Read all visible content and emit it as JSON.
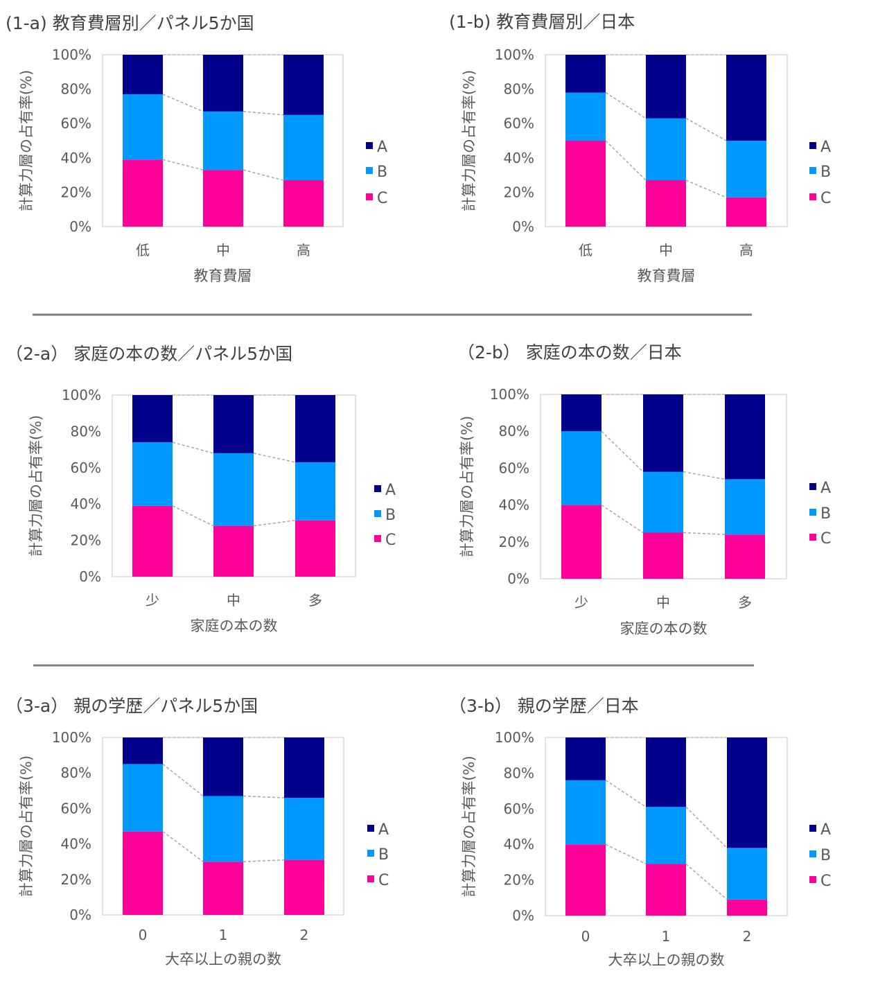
{
  "colors": {
    "A": "#00008b",
    "B": "#0099ff",
    "C": "#ff0099",
    "connector": "#a6a6a6",
    "divider": "#7f7f7f"
  },
  "legend": [
    "A",
    "B",
    "C"
  ],
  "chart_data": [
    {
      "id": "1-a",
      "type": "bar",
      "stacked": true,
      "title": "(1-a) 教育費層別／パネル5か国",
      "xlabel": "教育費層",
      "ylabel": "計算力層の占有率(%)",
      "categories": [
        "低",
        "中",
        "高"
      ],
      "yticks": [
        "0%",
        "20%",
        "40%",
        "60%",
        "80%",
        "100%"
      ],
      "ylim": [
        0,
        100
      ],
      "series": [
        {
          "name": "C",
          "values": [
            39,
            33,
            27
          ]
        },
        {
          "name": "B",
          "values": [
            38,
            34,
            38
          ]
        },
        {
          "name": "A",
          "values": [
            23,
            33,
            35
          ]
        }
      ]
    },
    {
      "id": "1-b",
      "type": "bar",
      "stacked": true,
      "title": "(1-b) 教育費層別／日本",
      "xlabel": "教育費層",
      "ylabel": "計算力層の占有率(%)",
      "categories": [
        "低",
        "中",
        "高"
      ],
      "yticks": [
        "0%",
        "20%",
        "40%",
        "60%",
        "80%",
        "100%"
      ],
      "ylim": [
        0,
        100
      ],
      "series": [
        {
          "name": "C",
          "values": [
            50,
            27,
            17
          ]
        },
        {
          "name": "B",
          "values": [
            28,
            36,
            33
          ]
        },
        {
          "name": "A",
          "values": [
            22,
            37,
            50
          ]
        }
      ]
    },
    {
      "id": "2-a",
      "type": "bar",
      "stacked": true,
      "title": "（2-a） 家庭の本の数／パネル5か国",
      "xlabel": "家庭の本の数",
      "ylabel": "計算力層の占有率(%)",
      "categories": [
        "少",
        "中",
        "多"
      ],
      "yticks": [
        "0%",
        "20%",
        "40%",
        "60%",
        "80%",
        "100%"
      ],
      "ylim": [
        0,
        100
      ],
      "series": [
        {
          "name": "C",
          "values": [
            39,
            28,
            31
          ]
        },
        {
          "name": "B",
          "values": [
            35,
            40,
            32
          ]
        },
        {
          "name": "A",
          "values": [
            26,
            32,
            37
          ]
        }
      ]
    },
    {
      "id": "2-b",
      "type": "bar",
      "stacked": true,
      "title": "（2-b） 家庭の本の数／日本",
      "xlabel": "家庭の本の数",
      "ylabel": "計算力層の占有率(%)",
      "categories": [
        "少",
        "中",
        "多"
      ],
      "yticks": [
        "0%",
        "20%",
        "40%",
        "60%",
        "80%",
        "100%"
      ],
      "ylim": [
        0,
        100
      ],
      "series": [
        {
          "name": "C",
          "values": [
            40,
            25,
            24
          ]
        },
        {
          "name": "B",
          "values": [
            40,
            33,
            30
          ]
        },
        {
          "name": "A",
          "values": [
            20,
            42,
            46
          ]
        }
      ]
    },
    {
      "id": "3-a",
      "type": "bar",
      "stacked": true,
      "title": "（3-a） 親の学歴／パネル5か国",
      "xlabel": "大卒以上の親の数",
      "ylabel": "計算力層の占有率(%)",
      "categories": [
        "0",
        "1",
        "2"
      ],
      "yticks": [
        "0%",
        "20%",
        "40%",
        "60%",
        "80%",
        "100%"
      ],
      "ylim": [
        0,
        100
      ],
      "series": [
        {
          "name": "C",
          "values": [
            47,
            30,
            31
          ]
        },
        {
          "name": "B",
          "values": [
            38,
            37,
            35
          ]
        },
        {
          "name": "A",
          "values": [
            15,
            33,
            34
          ]
        }
      ]
    },
    {
      "id": "3-b",
      "type": "bar",
      "stacked": true,
      "title": "（3-b） 親の学歴／日本",
      "xlabel": "大卒以上の親の数",
      "ylabel": "計算力層の占有率(%)",
      "categories": [
        "0",
        "1",
        "2"
      ],
      "yticks": [
        "0%",
        "20%",
        "40%",
        "60%",
        "80%",
        "100%"
      ],
      "ylim": [
        0,
        100
      ],
      "series": [
        {
          "name": "C",
          "values": [
            40,
            29,
            9
          ]
        },
        {
          "name": "B",
          "values": [
            36,
            32,
            29
          ]
        },
        {
          "name": "A",
          "values": [
            24,
            39,
            62
          ]
        }
      ]
    }
  ]
}
